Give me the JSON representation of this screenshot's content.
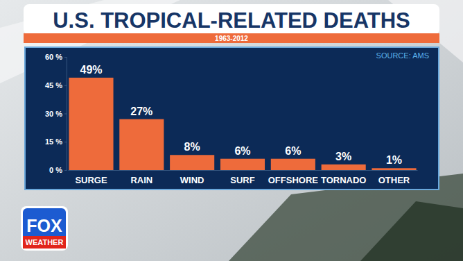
{
  "chart_data": {
    "type": "bar",
    "title": "U.S. TROPICAL-RELATED DEATHS",
    "subtitle": "1963-2012",
    "annotations": [
      "SOURCE: AMS"
    ],
    "categories": [
      "SURGE",
      "RAIN",
      "WIND",
      "SURF",
      "OFFSHORE",
      "TORNADO",
      "OTHER"
    ],
    "values": [
      49,
      27,
      8,
      6,
      6,
      3,
      1
    ],
    "value_labels": [
      "49%",
      "27%",
      "8%",
      "6%",
      "6%",
      "3%",
      "1%"
    ],
    "color": "#ee6b3b",
    "ylim": [
      0,
      60
    ],
    "yticks": [
      {
        "value": 0,
        "label": "0 %"
      },
      {
        "value": 15,
        "label": "15 %"
      },
      {
        "value": 30,
        "label": "30 %"
      },
      {
        "value": 45,
        "label": "45 %"
      },
      {
        "value": 60,
        "label": "60 %"
      }
    ],
    "grid": false,
    "data_labels": true
  },
  "branding": {
    "logo": [
      "FOX",
      "WEATHER"
    ]
  }
}
